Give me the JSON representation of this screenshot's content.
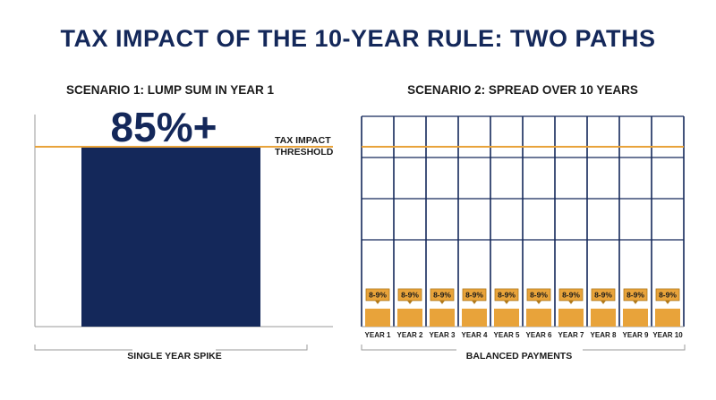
{
  "title": "TAX IMPACT OF THE 10-YEAR RULE: TWO PATHS",
  "colors": {
    "navy": "#14285a",
    "orange": "#e8a33a",
    "threshold": "#e8a33a",
    "grid": "#14285a"
  },
  "chart_data": [
    {
      "type": "bar",
      "title": "SCENARIO 1: LUMP SUM IN YEAR 1",
      "categories": [
        ""
      ],
      "values": [
        85
      ],
      "value_label": "85%+",
      "threshold_label_line1": "TAX IMPACT",
      "threshold_label_line2": "THRESHOLD",
      "caption": "SINGLE YEAR SPIKE"
    },
    {
      "type": "bar",
      "title": "SCENARIO 2: SPREAD OVER 10 YEARS",
      "categories": [
        "YEAR 1",
        "YEAR 2",
        "YEAR 3",
        "YEAR 4",
        "YEAR 5",
        "YEAR 6",
        "YEAR 7",
        "YEAR 8",
        "YEAR 9",
        "YEAR 10"
      ],
      "value_labels": [
        "8-9%",
        "8-9%",
        "8-9%",
        "8-9%",
        "8-9%",
        "8-9%",
        "8-9%",
        "8-9%",
        "8-9%",
        "8-9%"
      ],
      "values": [
        8.5,
        8.5,
        8.5,
        8.5,
        8.5,
        8.5,
        8.5,
        8.5,
        8.5,
        8.5
      ],
      "caption": "BALANCED PAYMENTS"
    }
  ]
}
